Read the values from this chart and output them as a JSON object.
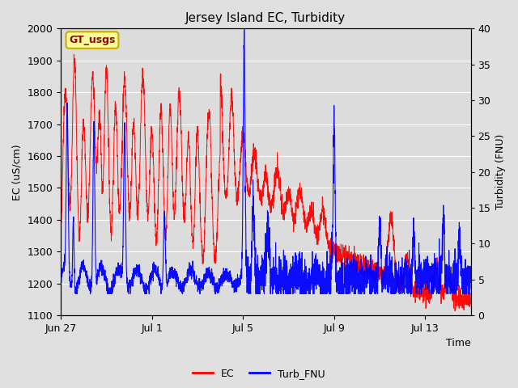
{
  "title": "Jersey Island EC, Turbidity",
  "xlabel": "Time",
  "ylabel_left": "EC (uS/cm)",
  "ylabel_right": "Turbidity (FNU)",
  "ylim_left": [
    1100,
    2000
  ],
  "ylim_right": [
    0,
    40
  ],
  "yticks_left": [
    1100,
    1200,
    1300,
    1400,
    1500,
    1600,
    1700,
    1800,
    1900,
    2000
  ],
  "yticks_right": [
    0,
    5,
    10,
    15,
    20,
    25,
    30,
    35,
    40
  ],
  "xlim": [
    0,
    18
  ],
  "xtick_labels": [
    "Jun 27",
    "Jul 1",
    "Jul 5",
    "Jul 9",
    "Jul 13"
  ],
  "xtick_positions": [
    0,
    4,
    8,
    12,
    16
  ],
  "ec_color": "#ff0000",
  "turb_color": "#0000ff",
  "fig_bg_color": "#e0e0e0",
  "plot_bg_color": "#dcdcdc",
  "grid_color": "#ffffff",
  "legend_ec": "EC",
  "legend_turb": "Turb_FNU",
  "annotation_label": "GT_usgs",
  "annotation_bg": "#ffff99",
  "annotation_border": "#ccaa00",
  "title_fontsize": 11,
  "axis_label_fontsize": 9,
  "tick_label_fontsize": 9,
  "legend_fontsize": 9
}
